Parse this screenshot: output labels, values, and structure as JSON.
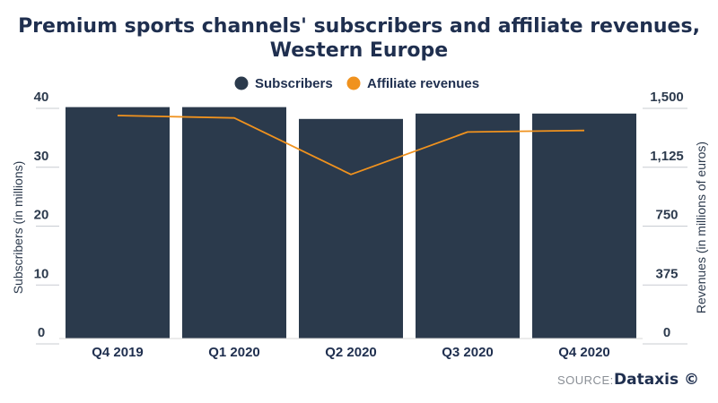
{
  "chart_data": {
    "type": "bar",
    "title_line1": "Premium sports channels' subscribers and affiliate revenues,",
    "title_line2": "Western Europe",
    "categories": [
      "Q4 2019",
      "Q1 2020",
      "Q2 2020",
      "Q3 2020",
      "Q4 2020"
    ],
    "series": [
      {
        "name": "Subscribers",
        "type": "bar",
        "axis": "left",
        "color": "#2b3a4c",
        "values": [
          39.3,
          39.3,
          37.3,
          38.2,
          38.2
        ]
      },
      {
        "name": "Affiliate revenues",
        "type": "line",
        "axis": "right",
        "color": "#f0921e",
        "values": [
          1420,
          1405,
          1045,
          1315,
          1325
        ]
      }
    ],
    "ylabel": "Subscribers (in millions)",
    "ylabel_right": "Revenues (in millions of euros)",
    "ylim": [
      0,
      40
    ],
    "ylim_right": [
      0,
      1500
    ],
    "yticks": [
      "0",
      "10",
      "20",
      "30",
      "40"
    ],
    "yticks_right": [
      "0",
      "375",
      "750",
      "1,125",
      "1,500"
    ],
    "grid": false,
    "legend_position": "top-center",
    "source_prefix": "SOURCE:",
    "source_brand": "Dataxis ©"
  }
}
